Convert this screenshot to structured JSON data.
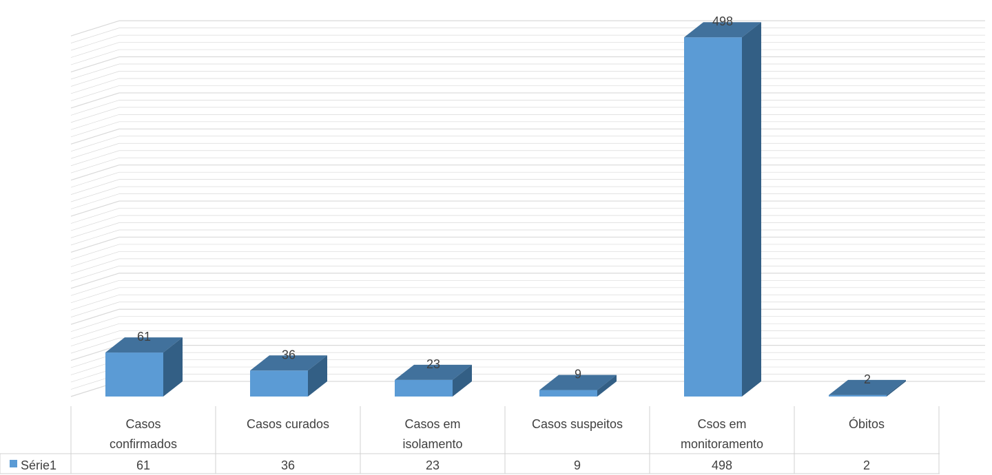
{
  "chart_data": {
    "type": "bar",
    "style": "3d-column-with-data-table",
    "categories": [
      [
        "Casos",
        "confirmados"
      ],
      [
        "Casos curados"
      ],
      [
        "Casos em",
        "isolamento"
      ],
      [
        "Casos suspeitos"
      ],
      [
        "Csos em",
        "monitoramento"
      ],
      [
        "Óbitos"
      ]
    ],
    "series": [
      {
        "name": "Série1",
        "values": [
          61,
          36,
          23,
          9,
          498,
          2
        ]
      }
    ],
    "value_labels": [
      "61",
      "36",
      "23",
      "9",
      "498",
      "2"
    ],
    "table_values": [
      "61",
      "36",
      "23",
      "9",
      "498",
      "2"
    ],
    "ylim": [
      0,
      500
    ],
    "grid": true,
    "legend": "in-data-table",
    "colors": {
      "front": "#5b9bd5",
      "top": "#41719c",
      "side": "#335f85",
      "grid": "#d9d9d9",
      "text": "#404040"
    }
  }
}
